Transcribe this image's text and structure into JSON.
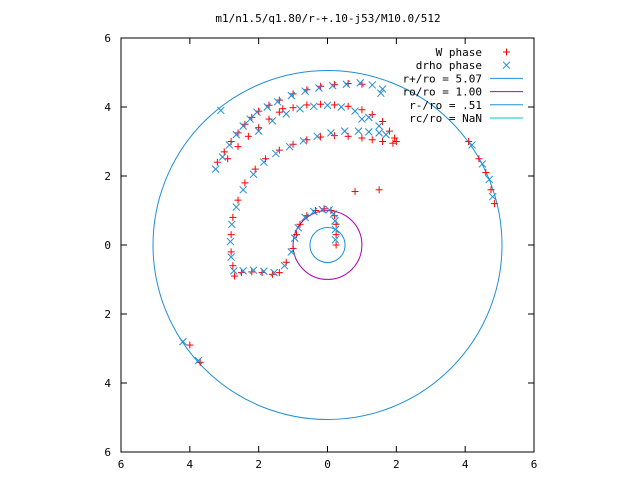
{
  "chart_data": {
    "type": "scatter",
    "title": "m1/n1.5/q1.80/r-+.10-j53/M10.0/512",
    "xlabel": "",
    "ylabel": "",
    "xlim": [
      -6,
      6
    ],
    "ylim": [
      -6,
      6
    ],
    "x_ticks": [
      -6,
      -4,
      -2,
      0,
      2,
      4,
      6
    ],
    "x_tick_labels": [
      "6",
      "4",
      "2",
      "0",
      "2",
      "4",
      "6"
    ],
    "y_ticks": [
      -6,
      -4,
      -2,
      0,
      2,
      4,
      6
    ],
    "y_tick_labels": [
      "6",
      "4",
      "2",
      "0",
      "2",
      "4",
      "6"
    ],
    "grid": false,
    "legend_position": "top-right",
    "series": [
      {
        "name": "W phase",
        "marker": "plus",
        "color": "#ff0000",
        "points": [
          [
            -3.2,
            2.4
          ],
          [
            -3.0,
            2.7
          ],
          [
            -2.8,
            3.0
          ],
          [
            -2.6,
            3.25
          ],
          [
            -2.4,
            3.5
          ],
          [
            -2.2,
            3.7
          ],
          [
            -2.0,
            3.88
          ],
          [
            -1.7,
            4.05
          ],
          [
            -1.4,
            4.2
          ],
          [
            -1.0,
            4.38
          ],
          [
            -0.6,
            4.5
          ],
          [
            -0.2,
            4.6
          ],
          [
            0.2,
            4.65
          ],
          [
            0.6,
            4.68
          ],
          [
            1.0,
            4.66
          ],
          [
            -2.9,
            2.5
          ],
          [
            -2.6,
            2.85
          ],
          [
            -2.3,
            3.15
          ],
          [
            -2.0,
            3.4
          ],
          [
            -1.7,
            3.65
          ],
          [
            -1.4,
            3.85
          ],
          [
            -1.0,
            3.98
          ],
          [
            -0.6,
            4.06
          ],
          [
            -0.2,
            4.08
          ],
          [
            0.2,
            4.06
          ],
          [
            0.6,
            4.02
          ],
          [
            1.0,
            3.92
          ],
          [
            1.3,
            3.78
          ],
          [
            1.6,
            3.58
          ],
          [
            1.8,
            3.3
          ],
          [
            1.95,
            3.1
          ],
          [
            2.0,
            3.0
          ],
          [
            1.9,
            2.95
          ],
          [
            1.6,
            3.0
          ],
          [
            1.3,
            3.05
          ],
          [
            1.0,
            3.1
          ],
          [
            0.6,
            3.15
          ],
          [
            0.2,
            3.17
          ],
          [
            -0.2,
            3.13
          ],
          [
            -0.6,
            3.05
          ],
          [
            -1.0,
            2.92
          ],
          [
            -1.4,
            2.75
          ],
          [
            -1.8,
            2.5
          ],
          [
            -2.1,
            2.2
          ],
          [
            -2.4,
            1.8
          ],
          [
            -2.6,
            1.3
          ],
          [
            -2.75,
            0.8
          ],
          [
            -2.8,
            0.3
          ],
          [
            -2.8,
            -0.2
          ],
          [
            -2.75,
            -0.6
          ],
          [
            -2.7,
            -0.9
          ],
          [
            -2.5,
            -0.8
          ],
          [
            -2.2,
            -0.78
          ],
          [
            -1.9,
            -0.8
          ],
          [
            -1.6,
            -0.85
          ],
          [
            -1.4,
            -0.8
          ],
          [
            -1.2,
            -0.5
          ],
          [
            -1.0,
            -0.1
          ],
          [
            -0.9,
            0.3
          ],
          [
            -0.8,
            0.6
          ],
          [
            -0.6,
            0.85
          ],
          [
            -0.35,
            1.0
          ],
          [
            -0.1,
            1.05
          ],
          [
            0.1,
            1.0
          ],
          [
            0.2,
            0.85
          ],
          [
            0.25,
            0.6
          ],
          [
            0.25,
            0.3
          ],
          [
            0.25,
            0.0
          ],
          [
            -1.3,
            3.95
          ],
          [
            0.8,
            1.55
          ],
          [
            1.5,
            1.6
          ],
          [
            4.1,
            3.0
          ],
          [
            4.4,
            2.5
          ],
          [
            4.6,
            2.1
          ],
          [
            4.75,
            1.6
          ],
          [
            4.85,
            1.2
          ],
          [
            -4.0,
            -2.9
          ],
          [
            -3.7,
            -3.4
          ]
        ]
      },
      {
        "name": "drho phase",
        "marker": "cross",
        "color": "#1f8fd6",
        "points": [
          [
            -3.25,
            2.2
          ],
          [
            -3.05,
            2.55
          ],
          [
            -2.85,
            2.9
          ],
          [
            -2.65,
            3.2
          ],
          [
            -2.45,
            3.45
          ],
          [
            -2.25,
            3.65
          ],
          [
            -2.05,
            3.85
          ],
          [
            -1.75,
            4.0
          ],
          [
            -1.45,
            4.15
          ],
          [
            -1.05,
            4.33
          ],
          [
            -0.65,
            4.46
          ],
          [
            -0.25,
            4.55
          ],
          [
            0.15,
            4.62
          ],
          [
            0.55,
            4.66
          ],
          [
            0.95,
            4.7
          ],
          [
            1.3,
            4.64
          ],
          [
            1.6,
            4.52
          ],
          [
            -2.0,
            3.3
          ],
          [
            -1.6,
            3.6
          ],
          [
            -1.2,
            3.8
          ],
          [
            -0.8,
            3.95
          ],
          [
            -0.4,
            4.02
          ],
          [
            0.0,
            4.05
          ],
          [
            0.4,
            4.0
          ],
          [
            0.8,
            3.88
          ],
          [
            1.2,
            3.7
          ],
          [
            1.5,
            3.45
          ],
          [
            1.7,
            3.2
          ],
          [
            1.5,
            3.25
          ],
          [
            1.2,
            3.28
          ],
          [
            0.9,
            3.3
          ],
          [
            0.5,
            3.3
          ],
          [
            0.1,
            3.25
          ],
          [
            -0.3,
            3.15
          ],
          [
            -0.7,
            3.02
          ],
          [
            -1.1,
            2.85
          ],
          [
            -1.5,
            2.65
          ],
          [
            -1.85,
            2.4
          ],
          [
            -2.15,
            2.05
          ],
          [
            -2.45,
            1.6
          ],
          [
            -2.65,
            1.1
          ],
          [
            -2.78,
            0.6
          ],
          [
            -2.82,
            0.1
          ],
          [
            -2.8,
            -0.35
          ],
          [
            -2.72,
            -0.75
          ],
          [
            -2.45,
            -0.75
          ],
          [
            -2.15,
            -0.73
          ],
          [
            -1.85,
            -0.76
          ],
          [
            -1.55,
            -0.8
          ],
          [
            -1.25,
            -0.6
          ],
          [
            -1.05,
            -0.2
          ],
          [
            -0.95,
            0.2
          ],
          [
            -0.85,
            0.5
          ],
          [
            -0.65,
            0.8
          ],
          [
            -0.4,
            0.97
          ],
          [
            -0.15,
            1.03
          ],
          [
            0.05,
            1.02
          ],
          [
            0.18,
            0.9
          ],
          [
            0.22,
            0.7
          ],
          [
            0.23,
            0.45
          ],
          [
            0.23,
            0.15
          ],
          [
            1.0,
            3.65
          ],
          [
            -3.1,
            3.9
          ],
          [
            1.55,
            4.4
          ],
          [
            4.2,
            2.9
          ],
          [
            4.5,
            2.35
          ],
          [
            4.7,
            1.9
          ],
          [
            4.8,
            1.4
          ],
          [
            -4.2,
            -2.8
          ],
          [
            -3.75,
            -3.35
          ]
        ]
      },
      {
        "name": "r+/ro = 5.07",
        "type": "circle",
        "radius": 5.07,
        "color": "#1f8fd6"
      },
      {
        "name": "ro/ro = 1.00",
        "type": "circle",
        "radius": 1.0,
        "color": "#b000b0"
      },
      {
        "name": "r-/ro = .51",
        "type": "circle",
        "radius": 0.51,
        "color": "#1f8fd6"
      },
      {
        "name": "rc/ro = NaN",
        "type": "circle",
        "radius": null,
        "color": "#00c8c8"
      }
    ]
  }
}
